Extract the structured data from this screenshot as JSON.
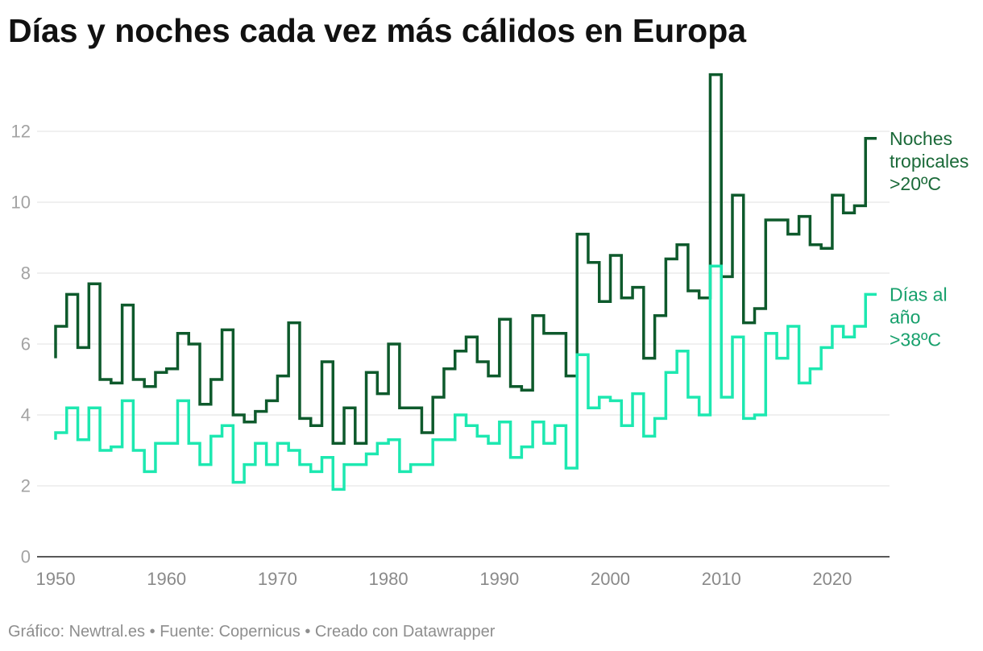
{
  "chart_data": {
    "type": "line",
    "interpolation": "step",
    "title": "Días y noches cada vez más cálidos en Europa",
    "xlabel": "",
    "ylabel": "",
    "xlim": [
      1950,
      2024
    ],
    "ylim": [
      0,
      14
    ],
    "x_ticks": [
      1950,
      1960,
      1970,
      1980,
      1990,
      2000,
      2010,
      2020
    ],
    "y_ticks": [
      0,
      2,
      4,
      6,
      8,
      10,
      12
    ],
    "grid": true,
    "legend": "right",
    "x": [
      1950,
      1951,
      1952,
      1953,
      1954,
      1955,
      1956,
      1957,
      1958,
      1959,
      1960,
      1961,
      1962,
      1963,
      1964,
      1965,
      1966,
      1967,
      1968,
      1969,
      1970,
      1971,
      1972,
      1973,
      1974,
      1975,
      1976,
      1977,
      1978,
      1979,
      1980,
      1981,
      1982,
      1983,
      1984,
      1985,
      1986,
      1987,
      1988,
      1989,
      1990,
      1991,
      1992,
      1993,
      1994,
      1995,
      1996,
      1997,
      1998,
      1999,
      2000,
      2001,
      2002,
      2003,
      2004,
      2005,
      2006,
      2007,
      2008,
      2009,
      2010,
      2011,
      2012,
      2013,
      2014,
      2015,
      2016,
      2017,
      2018,
      2019,
      2020,
      2021,
      2022,
      2023,
      2024
    ],
    "series": [
      {
        "name_lines": [
          "Noches",
          "tropicales",
          ">20ºC"
        ],
        "color": "#0e5a2c",
        "label_color": "#1b6a39",
        "values": [
          5.6,
          6.5,
          7.4,
          5.9,
          7.7,
          5.0,
          4.9,
          7.1,
          5.0,
          4.8,
          5.2,
          5.3,
          6.3,
          6.0,
          4.3,
          5.0,
          6.4,
          4.0,
          3.8,
          4.1,
          4.4,
          5.1,
          6.6,
          3.9,
          3.7,
          5.5,
          3.2,
          4.2,
          3.2,
          5.2,
          4.6,
          6.0,
          4.2,
          4.2,
          3.5,
          4.5,
          5.3,
          5.8,
          6.2,
          5.5,
          5.1,
          6.7,
          4.8,
          4.7,
          6.8,
          6.3,
          6.3,
          5.1,
          9.1,
          8.3,
          7.2,
          8.5,
          7.3,
          7.6,
          5.6,
          6.8,
          8.4,
          8.8,
          7.5,
          7.3,
          13.6,
          7.9,
          10.2,
          6.6,
          7.0,
          9.5,
          9.5,
          9.1,
          9.6,
          8.8,
          8.7,
          10.2,
          9.7,
          9.9,
          11.8
        ]
      },
      {
        "name_lines": [
          "Días al",
          "año",
          ">38ºC"
        ],
        "color": "#1de8b0",
        "label_color": "#17a06c",
        "values": [
          3.3,
          3.5,
          4.2,
          3.3,
          4.2,
          3.0,
          3.1,
          4.4,
          3.0,
          2.4,
          3.2,
          3.2,
          4.4,
          3.2,
          2.6,
          3.4,
          3.7,
          2.1,
          2.6,
          3.2,
          2.6,
          3.2,
          3.0,
          2.6,
          2.4,
          2.8,
          1.9,
          2.6,
          2.6,
          2.9,
          3.2,
          3.3,
          2.4,
          2.6,
          2.6,
          3.3,
          3.3,
          4.0,
          3.7,
          3.4,
          3.2,
          3.8,
          2.8,
          3.1,
          3.8,
          3.2,
          3.7,
          2.5,
          5.7,
          4.2,
          4.5,
          4.4,
          3.7,
          4.6,
          3.4,
          3.9,
          5.2,
          5.8,
          4.5,
          4.0,
          8.2,
          4.5,
          6.2,
          3.9,
          4.0,
          6.3,
          5.6,
          6.5,
          4.9,
          5.3,
          5.9,
          6.5,
          6.2,
          6.5,
          7.4
        ]
      }
    ]
  },
  "footer": {
    "credit": "Gráfico: Newtral.es",
    "separator": "•",
    "source": "Fuente: Copernicus",
    "made_with": "Creado con Datawrapper"
  }
}
